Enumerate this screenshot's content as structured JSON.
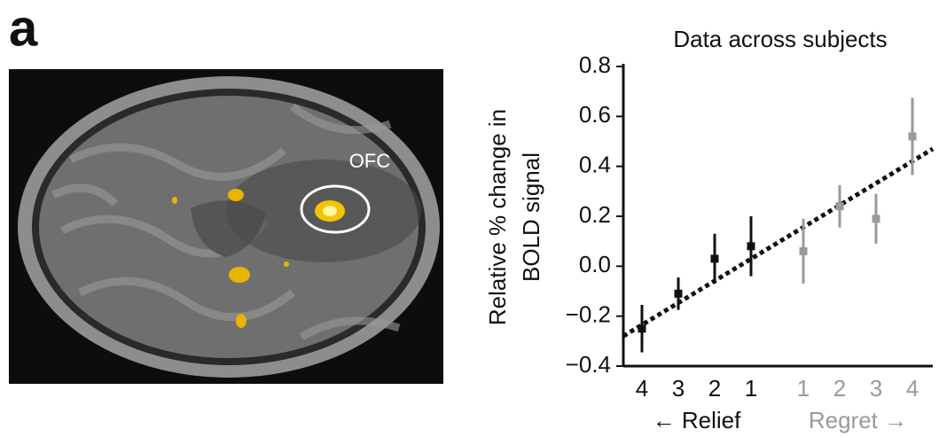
{
  "panel_label": "a",
  "image": {
    "label": "OFC"
  },
  "chart_data": {
    "type": "errorbar",
    "title": "Data across subjects",
    "ylabel": [
      "Relative % change in",
      "BOLD signal"
    ],
    "categories": [
      "4",
      "3",
      "2",
      "1",
      "1",
      "2",
      "3",
      "4"
    ],
    "series": [
      {
        "name": "← Relief",
        "color": "#111111",
        "values": [
          -0.25,
          -0.11,
          0.03,
          0.08,
          null,
          null,
          null,
          null
        ],
        "errors": [
          0.095,
          0.065,
          0.1,
          0.12,
          null,
          null,
          null,
          null
        ]
      },
      {
        "name": "Regret →",
        "color": "#9a9a9a",
        "values": [
          null,
          null,
          null,
          null,
          0.06,
          0.24,
          0.19,
          0.52
        ],
        "errors": [
          null,
          null,
          null,
          null,
          0.13,
          0.085,
          0.1,
          0.155
        ]
      }
    ],
    "fit_line": {
      "start": -0.28,
      "end": 0.47,
      "color": "#111111"
    },
    "ylim": [
      -0.4,
      0.8
    ],
    "yticks": [
      0.8,
      0.6,
      0.4,
      0.2,
      {
        "value": 0,
        "label": "0.0"
      },
      {
        "value": -0.2,
        "label": "−0.2"
      },
      {
        "value": -0.4,
        "label": "−0.4"
      }
    ],
    "grid": false
  }
}
